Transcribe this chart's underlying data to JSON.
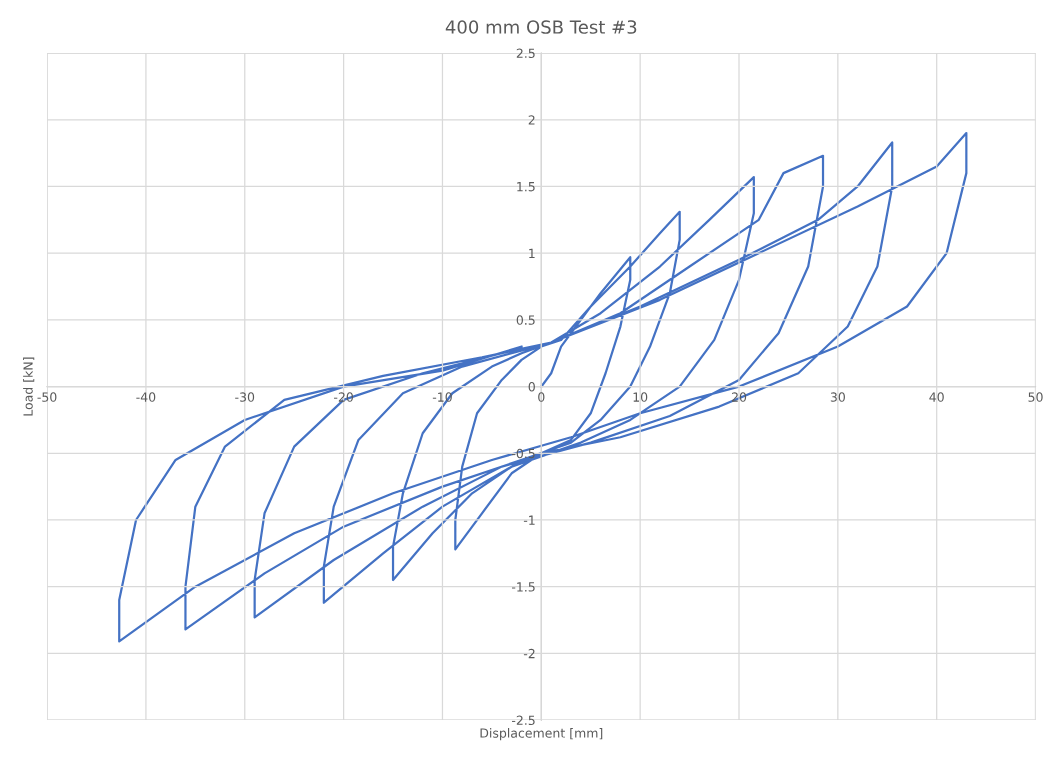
{
  "chart_data": {
    "type": "line",
    "title": "400 mm OSB Test #3",
    "xlabel": "Displacement [mm]",
    "ylabel": "Load [kN]",
    "series": [
      {
        "color": "#4472c4",
        "x": [
          0,
          1,
          2,
          4,
          6,
          8,
          9,
          9,
          8,
          6.5,
          5,
          3,
          0,
          -3,
          -6,
          -8.7,
          -8.7,
          -8,
          -6.5,
          -4,
          -2,
          0,
          2,
          5,
          9,
          12,
          14,
          14,
          13,
          11,
          9,
          6,
          3,
          -2,
          -7,
          -11,
          -15,
          -15,
          -14,
          -12,
          -9,
          -5,
          -2,
          1,
          6,
          12,
          17,
          21.5,
          21.5,
          20,
          17.5,
          14,
          9,
          4,
          -3,
          -10,
          -16,
          -22,
          -22,
          -21,
          -18.5,
          -14,
          -8,
          -3,
          1,
          8,
          15,
          22,
          24.5,
          28.5,
          28.5,
          27,
          24,
          20,
          13,
          5,
          -4,
          -12,
          -21,
          -29,
          -29,
          -28,
          -25,
          -20,
          -12,
          -4,
          1,
          10,
          20,
          28,
          32,
          35.5,
          35.5,
          34,
          31,
          26,
          18,
          8,
          0,
          -10,
          -20,
          -28,
          -36,
          -36,
          -35,
          -32,
          -26,
          -16,
          -6,
          1,
          12,
          22,
          32,
          40,
          43,
          43,
          41,
          37,
          30,
          20,
          10,
          3,
          -5,
          -15,
          -25,
          -35,
          -42.7,
          -42.7,
          -41,
          -37,
          -30,
          -20,
          -10,
          -2
        ],
        "values": [
          0,
          0.1,
          0.3,
          0.5,
          0.7,
          0.88,
          0.97,
          0.8,
          0.45,
          0.1,
          -0.2,
          -0.4,
          -0.5,
          -0.65,
          -0.95,
          -1.22,
          -1.0,
          -0.6,
          -0.2,
          0.05,
          0.2,
          0.3,
          0.35,
          0.6,
          0.9,
          1.15,
          1.31,
          1.1,
          0.7,
          0.3,
          0.0,
          -0.25,
          -0.42,
          -0.55,
          -0.8,
          -1.1,
          -1.45,
          -1.2,
          -0.8,
          -0.35,
          -0.05,
          0.15,
          0.25,
          0.33,
          0.55,
          0.9,
          1.25,
          1.57,
          1.3,
          0.8,
          0.35,
          0.0,
          -0.25,
          -0.42,
          -0.6,
          -0.9,
          -1.25,
          -1.62,
          -1.35,
          -0.9,
          -0.4,
          -0.05,
          0.15,
          0.25,
          0.33,
          0.55,
          0.9,
          1.25,
          1.6,
          1.73,
          1.5,
          0.9,
          0.4,
          0.05,
          -0.22,
          -0.42,
          -0.6,
          -0.9,
          -1.3,
          -1.73,
          -1.45,
          -0.95,
          -0.45,
          -0.1,
          0.1,
          0.25,
          0.33,
          0.6,
          0.95,
          1.25,
          1.5,
          1.83,
          1.5,
          0.9,
          0.45,
          0.1,
          -0.15,
          -0.38,
          -0.5,
          -0.75,
          -1.05,
          -1.4,
          -1.82,
          -1.5,
          -0.9,
          -0.45,
          -0.1,
          0.08,
          0.22,
          0.33,
          0.65,
          1.0,
          1.35,
          1.65,
          1.9,
          1.6,
          1.0,
          0.6,
          0.3,
          0.0,
          -0.2,
          -0.38,
          -0.55,
          -0.8,
          -1.1,
          -1.5,
          -1.91,
          -1.6,
          -1.0,
          -0.55,
          -0.25,
          0.0,
          0.12,
          0.3
        ]
      }
    ],
    "xlim": [
      -50,
      50
    ],
    "xticks": [
      -50,
      -40,
      -30,
      -20,
      -10,
      0,
      10,
      20,
      30,
      40,
      50
    ],
    "ylim": [
      -2.5,
      2.5
    ],
    "yticks": [
      -2.5,
      -2,
      -1.5,
      -1,
      -0.5,
      0,
      0.5,
      1,
      1.5,
      2,
      2.5
    ],
    "grid": true,
    "marker": "none",
    "line_style": "solid"
  }
}
